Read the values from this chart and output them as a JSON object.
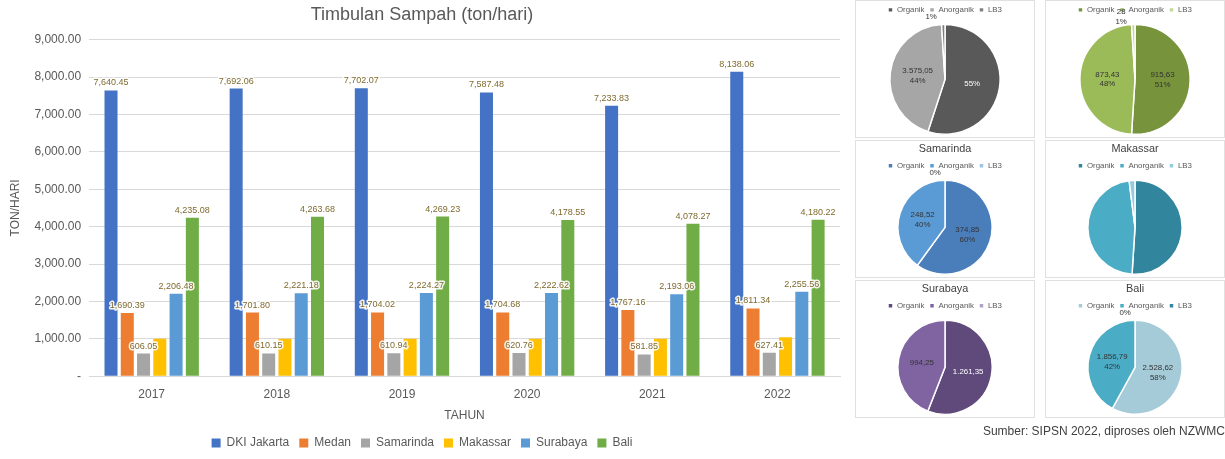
{
  "chart_data": [
    {
      "type": "bar",
      "title": "Timbulan Sampah (ton/hari)",
      "xlabel": "TAHUN",
      "ylabel": "TON/HARI",
      "categories": [
        "2017",
        "2018",
        "2019",
        "2020",
        "2021",
        "2022"
      ],
      "series": [
        {
          "name": "DKI Jakarta",
          "color": "#4472c4",
          "values": [
            7640.45,
            7692.06,
            7702.07,
            7587.48,
            7233.83,
            8138.06
          ],
          "value_labels": [
            "7,640.45",
            "7,692.06",
            "7,702.07",
            "7,587.48",
            "7,233.83",
            "8,138.06"
          ]
        },
        {
          "name": "Medan",
          "color": "#ed7d31",
          "values": [
            1690.39,
            1701.8,
            1704.02,
            1704.68,
            1767.16,
            1811.34
          ],
          "value_labels": [
            "1,690.39",
            "1,701.80",
            "1,704.02",
            "1,704.68",
            "1,767.16",
            "1,811.34"
          ]
        },
        {
          "name": "Samarinda",
          "color": "#a5a5a5",
          "values": [
            606.05,
            610.15,
            610.94,
            620.76,
            581.85,
            627.41
          ],
          "value_labels": [
            "606.05",
            "610.15",
            "610.94",
            "620.76",
            "581.85",
            "627.41"
          ]
        },
        {
          "name": "Makassar",
          "color": "#ffc000",
          "values": [
            1000,
            1000,
            1000,
            1000,
            1000,
            1040
          ]
        },
        {
          "name": "Surabaya",
          "color": "#5b9bd5",
          "values": [
            2206.48,
            2221.18,
            2224.27,
            2222.62,
            2193.06,
            2255.56
          ],
          "value_labels": [
            "2,206.48",
            "2,221.18",
            "2,224.27",
            "2,222.62",
            "2,193.06",
            "2,255.56"
          ]
        },
        {
          "name": "Bali",
          "color": "#70ad47",
          "values": [
            4235.08,
            4263.68,
            4269.23,
            4178.55,
            4078.27,
            4180.22
          ],
          "value_labels": [
            "4,235.08",
            "4,263.68",
            "4,269.23",
            "4,178.55",
            "4,078.27",
            "4,180.22"
          ]
        }
      ],
      "ylim": [
        0,
        9000
      ],
      "yticks": [
        {
          "value": 0,
          "label": "-"
        },
        {
          "value": 1000,
          "label": "1,000.00"
        },
        {
          "value": 2000,
          "label": "2,000.00"
        },
        {
          "value": 3000,
          "label": "3,000.00"
        },
        {
          "value": 4000,
          "label": "4,000.00"
        },
        {
          "value": 5000,
          "label": "5,000.00"
        },
        {
          "value": 6000,
          "label": "6,000.00"
        },
        {
          "value": 7000,
          "label": "7,000.00"
        },
        {
          "value": 8000,
          "label": "8,000.00"
        },
        {
          "value": 9000,
          "label": "9,000.00"
        }
      ],
      "grid": "y",
      "legend": "bottom"
    },
    {
      "type": "pie",
      "categories": [
        "Organik",
        "Anorganik",
        "LB3"
      ],
      "values": [
        55,
        44,
        1
      ],
      "colors": [
        "#595959",
        "#a6a6a6",
        "#7f7f7f"
      ],
      "value_labels": [
        "55%",
        "3.575,05\n44%",
        "1%"
      ],
      "legend": "top"
    },
    {
      "type": "pie",
      "categories": [
        "Organik",
        "Anorganik",
        "LB3"
      ],
      "values": [
        51,
        48,
        1
      ],
      "colors": [
        "#77933c",
        "#9bbb59",
        "#c3d69b"
      ],
      "value_labels": [
        "915,63\n51%",
        "873,43\n48%",
        "28\n1%"
      ],
      "legend": "top"
    },
    {
      "type": "pie",
      "title": "Samarinda",
      "categories": [
        "Organik",
        "Anorganik",
        "LB3"
      ],
      "values": [
        60,
        40,
        0
      ],
      "colors": [
        "#4a7ebb",
        "#5b9bd5",
        "#9dc3e6"
      ],
      "value_labels": [
        "374,85\n60%",
        "248,52\n40%",
        "0%"
      ],
      "legend": "top"
    },
    {
      "type": "pie",
      "title": "Makassar",
      "categories": [
        "Organik",
        "Anorganik",
        "LB3"
      ],
      "values": [
        51,
        47,
        2
      ],
      "colors": [
        "#31859c",
        "#4bacc6",
        "#93cddd"
      ],
      "legend": "top"
    },
    {
      "type": "pie",
      "title": "Surabaya",
      "categories": [
        "Organik",
        "Anorganik",
        "LB3"
      ],
      "values": [
        1261.35,
        994.25,
        0
      ],
      "colors": [
        "#604a7b",
        "#8064a2",
        "#b3a2c7"
      ],
      "value_labels": [
        "1.261,35",
        "994,25",
        null
      ],
      "legend": "top"
    },
    {
      "type": "pie",
      "title": "Bali",
      "categories": [
        "Organik",
        "Anorganik",
        "LB3"
      ],
      "values": [
        58,
        42,
        0
      ],
      "colors": [
        "#a5cbd8",
        "#4bacc6",
        "#31859c"
      ],
      "value_labels": [
        "2.528,62\n58%",
        "1.856,79\n42%",
        "0%"
      ],
      "legend": "top",
      "annotations": [
        "Sumber: SIPSN 2022, diproses oleh NZWMC"
      ]
    }
  ]
}
